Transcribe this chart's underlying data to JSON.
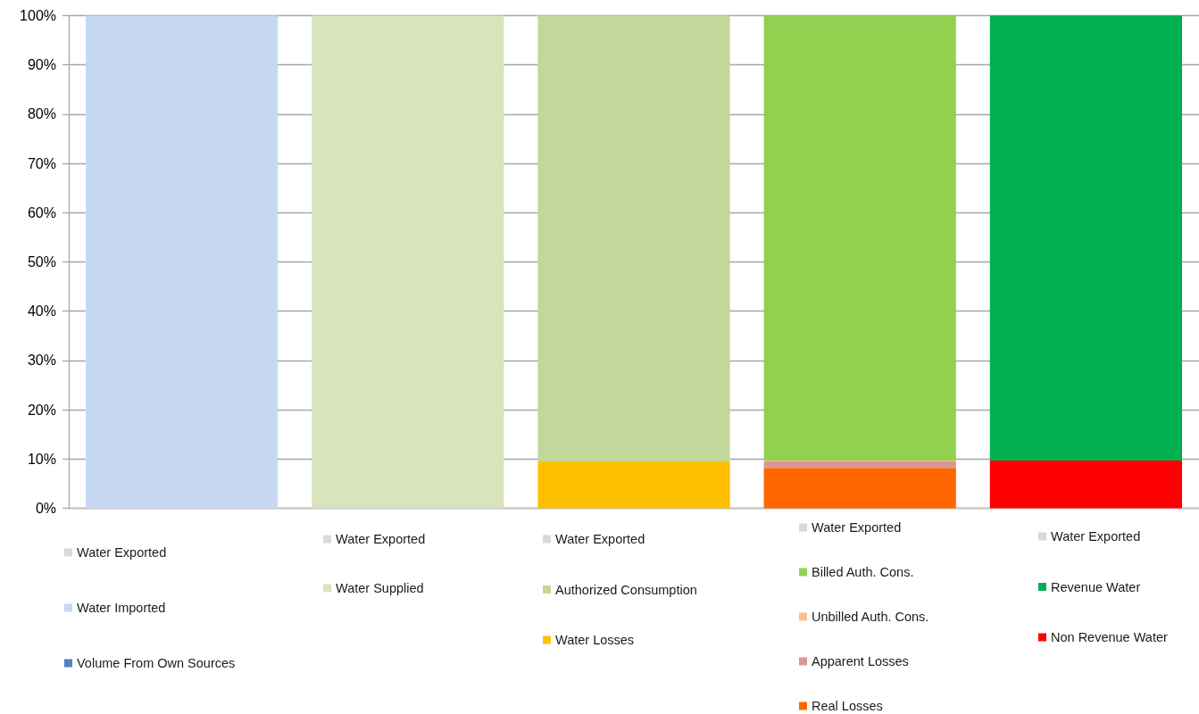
{
  "chart_data": {
    "type": "bar",
    "stacked": true,
    "categories": [
      null,
      null,
      null,
      null,
      null
    ],
    "series": [
      {
        "name": "Volume From Own Sources",
        "color": "#4f81bd",
        "values": [
          null,
          null,
          null,
          null,
          null
        ]
      },
      {
        "name": "Water Imported",
        "color": "#c6d9f0",
        "values": [
          100,
          null,
          null,
          null,
          null
        ]
      },
      {
        "name": "Water Exported",
        "color": "#d9d9d9",
        "values": [
          null,
          null,
          null,
          null,
          null
        ]
      },
      {
        "name": "Water Supplied",
        "color": "#d8e4bc",
        "values": [
          null,
          100,
          null,
          null,
          null
        ]
      },
      {
        "name": "Water Exported",
        "color": "#d9d9d9",
        "values": [
          null,
          null,
          null,
          null,
          null
        ]
      },
      {
        "name": "Water Losses",
        "color": "#ffc000",
        "values": [
          null,
          null,
          9.5,
          null,
          null
        ]
      },
      {
        "name": "Authorized Consumption",
        "color": "#c4d79b",
        "values": [
          null,
          null,
          90.5,
          null,
          null
        ]
      },
      {
        "name": "Water Exported",
        "color": "#d9d9d9",
        "values": [
          null,
          null,
          null,
          null,
          null
        ]
      },
      {
        "name": "Real Losses",
        "color": "#ff6600",
        "values": [
          null,
          null,
          null,
          8.2,
          null
        ]
      },
      {
        "name": "Apparent Losses",
        "color": "#da9694",
        "values": [
          null,
          null,
          null,
          1.3,
          null
        ]
      },
      {
        "name": "Unbilled Auth. Cons.",
        "color": "#fabf8f",
        "values": [
          null,
          null,
          null,
          0.2,
          null
        ]
      },
      {
        "name": "Billed Auth. Cons.",
        "color": "#92d050",
        "values": [
          null,
          null,
          null,
          90.3,
          null
        ]
      },
      {
        "name": "Water Exported",
        "color": "#d9d9d9",
        "values": [
          null,
          null,
          null,
          null,
          null
        ]
      },
      {
        "name": "Non Revenue Water",
        "color": "#ff0000",
        "values": [
          null,
          null,
          null,
          null,
          9.7
        ]
      },
      {
        "name": "Revenue Water",
        "color": "#00b050",
        "values": [
          null,
          null,
          null,
          null,
          90.3
        ]
      },
      {
        "name": "Water Exported",
        "color": "#d9d9d9",
        "values": [
          null,
          null,
          null,
          null,
          null
        ]
      }
    ],
    "ylim": [
      0,
      100
    ],
    "yticks": [
      {
        "value": 0,
        "label": "0%"
      },
      {
        "value": 10,
        "label": "10%"
      },
      {
        "value": 20,
        "label": "20%"
      },
      {
        "value": 30,
        "label": "30%"
      },
      {
        "value": 40,
        "label": "40%"
      },
      {
        "value": 50,
        "label": "50%"
      },
      {
        "value": 60,
        "label": "60%"
      },
      {
        "value": 70,
        "label": "70%"
      },
      {
        "value": 80,
        "label": "80%"
      },
      {
        "value": 90,
        "label": "90%"
      },
      {
        "value": 100,
        "label": "100%"
      }
    ],
    "grid": "y",
    "legend": "bottom",
    "tick_labels": "y"
  }
}
